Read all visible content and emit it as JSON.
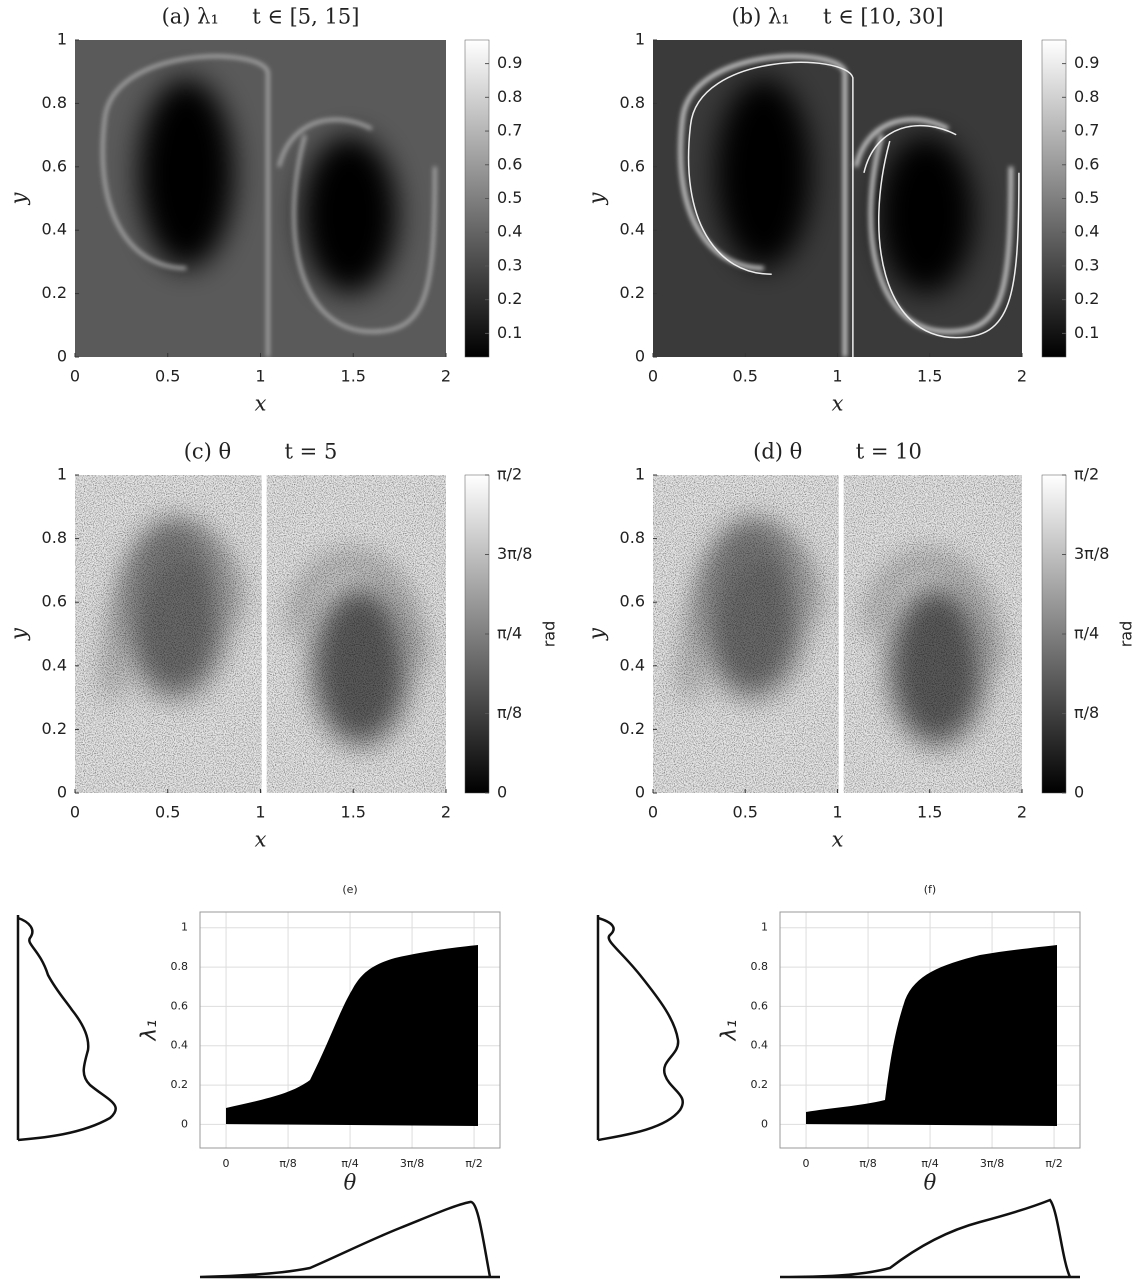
{
  "chart_data": [
    {
      "type": "heatmap",
      "variable": "lambda",
      "title": "(a) λ₁     t ∈ [5, 15]",
      "xlabel": "x",
      "ylabel": "y",
      "xlim": [
        0,
        2
      ],
      "xticks": [
        0,
        0.5,
        1,
        1.5,
        2
      ],
      "ylim": [
        0,
        1
      ],
      "yticks": [
        0,
        0.2,
        0.4,
        0.6,
        0.8,
        1
      ],
      "colorbar": {
        "lim": [
          0.03,
          0.97
        ],
        "ticks": [
          0.1,
          0.2,
          0.3,
          0.4,
          0.5,
          0.6,
          0.7,
          0.8,
          0.9
        ],
        "cmap": "gray"
      }
    },
    {
      "type": "heatmap",
      "variable": "lambda",
      "title": "(b) λ₁     t ∈ [10, 30]",
      "xlabel": "x",
      "ylabel": "y",
      "xlim": [
        0,
        2
      ],
      "xticks": [
        0,
        0.5,
        1,
        1.5,
        2
      ],
      "ylim": [
        0,
        1
      ],
      "yticks": [
        0,
        0.2,
        0.4,
        0.6,
        0.8,
        1
      ],
      "colorbar": {
        "lim": [
          0.03,
          0.97
        ],
        "ticks": [
          0.1,
          0.2,
          0.3,
          0.4,
          0.5,
          0.6,
          0.7,
          0.8,
          0.9
        ],
        "cmap": "gray"
      }
    },
    {
      "type": "heatmap",
      "variable": "theta",
      "title": "(c) θ        t = 5",
      "xlabel": "x",
      "ylabel": "y",
      "xlim": [
        0,
        2
      ],
      "xticks": [
        0,
        0.5,
        1,
        1.5,
        2
      ],
      "ylim": [
        0,
        1
      ],
      "yticks": [
        0,
        0.2,
        0.4,
        0.6,
        0.8,
        1
      ],
      "colorbar": {
        "lim": [
          0,
          1.5708
        ],
        "label": "rad",
        "cmap": "gray",
        "ticks": [
          0,
          {
            "value": 0.3927,
            "label": "π/8"
          },
          {
            "value": 0.7854,
            "label": "π/4"
          },
          {
            "value": 1.1781,
            "label": "3π/8"
          },
          {
            "value": 1.5708,
            "label": "π/2"
          }
        ]
      }
    },
    {
      "type": "heatmap",
      "variable": "theta",
      "title": "(d) θ        t = 10",
      "xlabel": "x",
      "ylabel": "y",
      "xlim": [
        0,
        2
      ],
      "xticks": [
        0,
        0.5,
        1,
        1.5,
        2
      ],
      "ylim": [
        0,
        1
      ],
      "yticks": [
        0,
        0.2,
        0.4,
        0.6,
        0.8,
        1
      ],
      "colorbar": {
        "lim": [
          0,
          1.5708
        ],
        "label": "rad",
        "cmap": "gray",
        "ticks": [
          0,
          {
            "value": 0.3927,
            "label": "π/8"
          },
          {
            "value": 0.7854,
            "label": "π/4"
          },
          {
            "value": 1.1781,
            "label": "3π/8"
          },
          {
            "value": 1.5708,
            "label": "π/2"
          }
        ]
      }
    },
    {
      "type": "scatter",
      "title": "(e)",
      "xlabel": "θ",
      "ylabel": "λ₁",
      "color": "#000000",
      "grid": true,
      "xlim": [
        -0.165,
        1.735
      ],
      "xticks": [
        0,
        {
          "value": 0.3927,
          "label": "π/8"
        },
        {
          "value": 0.7854,
          "label": "π/4"
        },
        {
          "value": 1.1781,
          "label": "3π/8"
        },
        {
          "value": 1.5708,
          "label": "π/2"
        }
      ],
      "ylim": [
        -0.12,
        1.08
      ],
      "yticks": [
        0,
        0.2,
        0.4,
        0.6,
        0.8,
        1
      ]
    },
    {
      "type": "scatter",
      "title": "(f)",
      "xlabel": "θ",
      "ylabel": "λ₁",
      "color": "#000000",
      "grid": true,
      "xlim": [
        -0.165,
        1.735
      ],
      "xticks": [
        0,
        {
          "value": 0.3927,
          "label": "π/8"
        },
        {
          "value": 0.7854,
          "label": "π/4"
        },
        {
          "value": 1.1781,
          "label": "3π/8"
        },
        {
          "value": 1.5708,
          "label": "π/2"
        }
      ],
      "ylim": [
        -0.12,
        1.08
      ],
      "yticks": [
        0,
        0.2,
        0.4,
        0.6,
        0.8,
        1
      ]
    }
  ]
}
